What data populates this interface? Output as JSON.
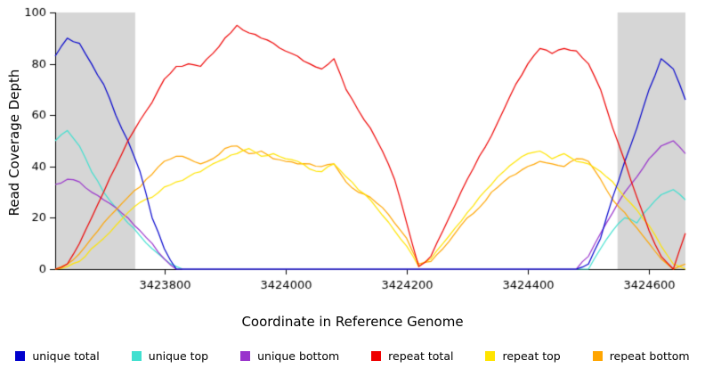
{
  "chart_data": {
    "type": "line",
    "title": "",
    "xlabel": "Coordinate in Reference Genome",
    "ylabel": "Read Coverage Depth",
    "xlim": [
      3423620,
      3424660
    ],
    "ylim": [
      0,
      100
    ],
    "xticks": [
      3423800,
      3424000,
      3424200,
      3424400,
      3424600
    ],
    "yticks": [
      0,
      20,
      40,
      60,
      80,
      100
    ],
    "grid": false,
    "legend_position": "bottom",
    "shading_color": "#D6D6D6",
    "shaded_regions": [
      [
        3423620,
        3423752
      ],
      [
        3424548,
        3424660
      ]
    ],
    "x": [
      3423620,
      3423640,
      3423660,
      3423680,
      3423700,
      3423720,
      3423740,
      3423760,
      3423780,
      3423800,
      3423820,
      3423840,
      3423860,
      3423880,
      3423900,
      3423920,
      3423940,
      3423960,
      3423980,
      3424000,
      3424020,
      3424040,
      3424060,
      3424080,
      3424100,
      3424120,
      3424140,
      3424160,
      3424180,
      3424200,
      3424220,
      3424240,
      3424260,
      3424280,
      3424300,
      3424320,
      3424340,
      3424360,
      3424380,
      3424400,
      3424420,
      3424440,
      3424460,
      3424480,
      3424500,
      3424520,
      3424540,
      3424560,
      3424580,
      3424600,
      3424620,
      3424640,
      3424660
    ],
    "series": [
      {
        "name": "unique total",
        "color": "#0000CD",
        "values": [
          83,
          90,
          88,
          80,
          72,
          60,
          50,
          38,
          20,
          8,
          0,
          0,
          0,
          0,
          0,
          0,
          0,
          0,
          0,
          0,
          0,
          0,
          0,
          0,
          0,
          0,
          0,
          0,
          0,
          0,
          0,
          0,
          0,
          0,
          0,
          0,
          0,
          0,
          0,
          0,
          0,
          0,
          0,
          0,
          2,
          12,
          28,
          42,
          55,
          70,
          82,
          78,
          66
        ]
      },
      {
        "name": "unique top",
        "color": "#40E0D0",
        "values": [
          50,
          54,
          48,
          38,
          30,
          24,
          18,
          13,
          8,
          4,
          1,
          0,
          0,
          0,
          0,
          0,
          0,
          0,
          0,
          0,
          0,
          0,
          0,
          0,
          0,
          0,
          0,
          0,
          0,
          0,
          0,
          0,
          0,
          0,
          0,
          0,
          0,
          0,
          0,
          0,
          0,
          0,
          0,
          0,
          0,
          8,
          15,
          20,
          18,
          24,
          29,
          31,
          27
        ]
      },
      {
        "name": "unique bottom",
        "color": "#9933CC",
        "values": [
          33,
          35,
          34,
          30,
          27,
          24,
          20,
          15,
          10,
          4,
          0,
          0,
          0,
          0,
          0,
          0,
          0,
          0,
          0,
          0,
          0,
          0,
          0,
          0,
          0,
          0,
          0,
          0,
          0,
          0,
          0,
          0,
          0,
          0,
          0,
          0,
          0,
          0,
          0,
          0,
          0,
          0,
          0,
          0,
          5,
          14,
          22,
          30,
          36,
          43,
          48,
          50,
          45
        ]
      },
      {
        "name": "repeat total",
        "color": "#EE0000",
        "values": [
          0,
          2,
          10,
          20,
          30,
          40,
          50,
          58,
          65,
          74,
          79,
          80,
          79,
          84,
          90,
          95,
          92,
          90,
          88,
          85,
          83,
          80,
          78,
          82,
          70,
          62,
          55,
          46,
          35,
          18,
          1,
          5,
          15,
          25,
          35,
          44,
          52,
          62,
          72,
          80,
          86,
          84,
          86,
          85,
          80,
          70,
          55,
          42,
          28,
          15,
          5,
          0,
          14
        ]
      },
      {
        "name": "repeat top",
        "color": "#FFE400",
        "values": [
          0,
          1,
          3,
          8,
          12,
          17,
          22,
          26,
          28,
          32,
          34,
          36,
          38,
          41,
          43,
          45,
          47,
          44,
          45,
          43,
          42,
          39,
          38,
          41,
          36,
          31,
          27,
          21,
          15,
          9,
          1,
          4,
          10,
          16,
          22,
          28,
          33,
          38,
          42,
          45,
          46,
          43,
          45,
          42,
          41,
          38,
          34,
          28,
          23,
          17,
          9,
          2,
          0
        ]
      },
      {
        "name": "repeat bottom",
        "color": "#FFA500",
        "values": [
          0,
          2,
          6,
          12,
          18,
          23,
          28,
          32,
          37,
          42,
          44,
          43,
          41,
          43,
          47,
          48,
          45,
          46,
          43,
          42,
          41,
          41,
          40,
          41,
          34,
          30,
          28,
          24,
          18,
          12,
          2,
          3,
          8,
          14,
          20,
          24,
          30,
          34,
          37,
          40,
          42,
          41,
          40,
          43,
          42,
          35,
          27,
          22,
          16,
          10,
          4,
          0,
          2
        ]
      }
    ]
  }
}
